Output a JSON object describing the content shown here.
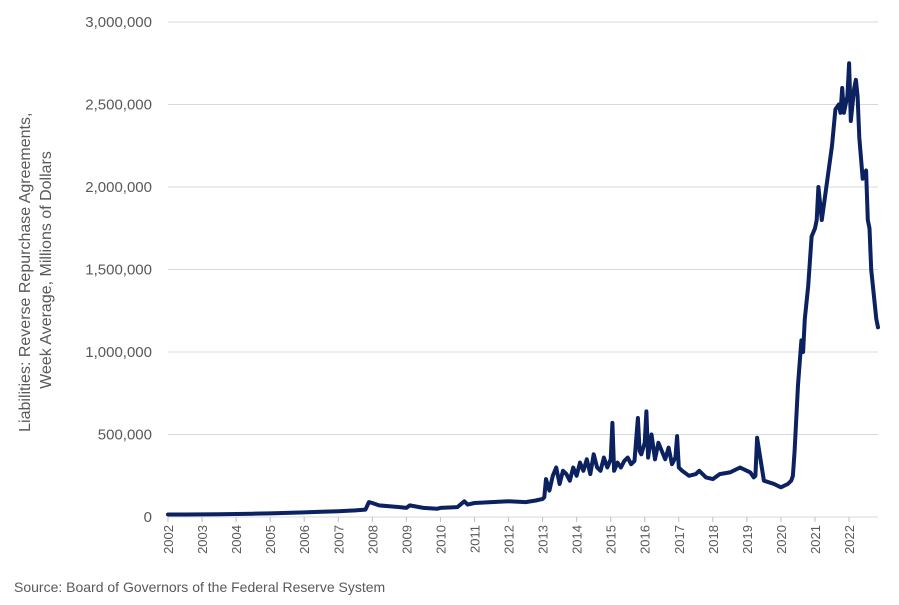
{
  "chart_data": {
    "type": "line",
    "title": "",
    "ylabel": "Liabilities: Reverse Repurchase Agreements, Week Average, Millions of Dollars",
    "ylabel_lines": [
      "Liabilities: Reverse Repurchase Agreements,",
      "Week Average, Millions of Dollars"
    ],
    "xlabel": "",
    "source": "Source: Board of Governors of the Federal Reserve System",
    "ylim": [
      0,
      3000000
    ],
    "xlim": [
      2002,
      2022.85
    ],
    "y_ticks": [
      {
        "value": 0,
        "label": "0"
      },
      {
        "value": 500000,
        "label": "500,000"
      },
      {
        "value": 1000000,
        "label": "1,000,000"
      },
      {
        "value": 1500000,
        "label": "1,500,000"
      },
      {
        "value": 2000000,
        "label": "2,000,000"
      },
      {
        "value": 2500000,
        "label": "2,500,000"
      },
      {
        "value": 3000000,
        "label": "3,000,000"
      }
    ],
    "x_ticks": [
      "2002",
      "2003",
      "2004",
      "2005",
      "2006",
      "2007",
      "2008",
      "2009",
      "2010",
      "2011",
      "2012",
      "2013",
      "2014",
      "2015",
      "2016",
      "2017",
      "2018",
      "2019",
      "2020",
      "2021",
      "2022"
    ],
    "grid": "horizontal",
    "legend": "none",
    "line_color": "#0b2160",
    "series": [
      {
        "x": [
          2002.0,
          2002.5,
          2003.0,
          2003.5,
          2004.0,
          2004.5,
          2005.0,
          2005.5,
          2006.0,
          2006.5,
          2007.0,
          2007.5,
          2007.8,
          2007.9,
          2008.0,
          2008.2,
          2008.5,
          2008.8,
          2009.0,
          2009.1,
          2009.5,
          2009.9,
          2010.0,
          2010.5,
          2010.7,
          2010.8,
          2011.0,
          2011.5,
          2012.0,
          2012.5,
          2012.8,
          2013.0,
          2013.05,
          2013.1,
          2013.2,
          2013.3,
          2013.4,
          2013.5,
          2013.6,
          2013.7,
          2013.8,
          2013.9,
          2014.0,
          2014.1,
          2014.2,
          2014.3,
          2014.4,
          2014.5,
          2014.6,
          2014.7,
          2014.8,
          2014.9,
          2015.0,
          2015.05,
          2015.1,
          2015.2,
          2015.3,
          2015.4,
          2015.5,
          2015.6,
          2015.7,
          2015.8,
          2015.85,
          2015.9,
          2016.0,
          2016.05,
          2016.1,
          2016.2,
          2016.3,
          2016.4,
          2016.5,
          2016.6,
          2016.7,
          2016.8,
          2016.9,
          2016.95,
          2017.0,
          2017.1,
          2017.3,
          2017.5,
          2017.6,
          2017.8,
          2018.0,
          2018.2,
          2018.5,
          2018.8,
          2019.0,
          2019.1,
          2019.2,
          2019.25,
          2019.3,
          2019.5,
          2019.8,
          2020.0,
          2020.2,
          2020.3,
          2020.35,
          2020.4,
          2020.5,
          2020.6,
          2020.65,
          2020.7,
          2020.8,
          2020.9,
          2021.0,
          2021.05,
          2021.1,
          2021.15,
          2021.2,
          2021.3,
          2021.4,
          2021.5,
          2021.6,
          2021.7,
          2021.75,
          2021.8,
          2021.85,
          2021.9,
          2021.95,
          2022.0,
          2022.05,
          2022.1,
          2022.15,
          2022.2,
          2022.25,
          2022.3,
          2022.4,
          2022.5,
          2022.55,
          2022.6,
          2022.65,
          2022.7,
          2022.75,
          2022.8,
          2022.85
        ],
        "values": [
          15000,
          15000,
          16000,
          17000,
          18000,
          20000,
          22000,
          25000,
          28000,
          32000,
          35000,
          40000,
          45000,
          90000,
          85000,
          70000,
          65000,
          60000,
          55000,
          70000,
          55000,
          50000,
          55000,
          60000,
          95000,
          75000,
          85000,
          90000,
          95000,
          90000,
          100000,
          110000,
          120000,
          230000,
          160000,
          250000,
          300000,
          200000,
          280000,
          260000,
          220000,
          300000,
          250000,
          330000,
          280000,
          350000,
          260000,
          380000,
          300000,
          280000,
          360000,
          300000,
          350000,
          570000,
          280000,
          330000,
          300000,
          340000,
          360000,
          320000,
          340000,
          600000,
          400000,
          380000,
          450000,
          640000,
          360000,
          500000,
          350000,
          450000,
          400000,
          350000,
          420000,
          320000,
          360000,
          490000,
          300000,
          280000,
          250000,
          260000,
          280000,
          240000,
          230000,
          260000,
          270000,
          300000,
          280000,
          270000,
          240000,
          250000,
          480000,
          220000,
          200000,
          180000,
          200000,
          220000,
          250000,
          400000,
          800000,
          1070000,
          1000000,
          1200000,
          1400000,
          1700000,
          1750000,
          1800000,
          2000000,
          1900000,
          1800000,
          1950000,
          2100000,
          2250000,
          2470000,
          2500000,
          2450000,
          2600000,
          2450000,
          2500000,
          2550000,
          2750000,
          2400000,
          2500000,
          2600000,
          2650000,
          2550000,
          2300000,
          2050000,
          2100000,
          1800000,
          1750000,
          1500000,
          1400000,
          1300000,
          1200000,
          1150000
        ]
      }
    ]
  }
}
